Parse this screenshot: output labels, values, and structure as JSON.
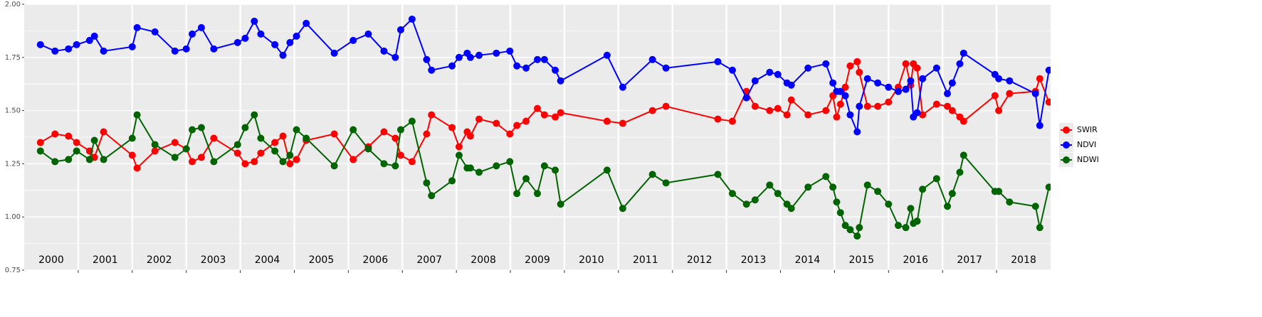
{
  "chart_data": {
    "type": "line",
    "year_labels": [
      "2000",
      "2001",
      "2002",
      "2003",
      "2004",
      "2005",
      "2006",
      "2007",
      "2008",
      "2009",
      "2010",
      "2011",
      "2012",
      "2013",
      "2014",
      "2015",
      "2016",
      "2017",
      "2018"
    ],
    "x": [
      2000.3,
      2000.57,
      2000.82,
      2000.97,
      2001.21,
      2001.3,
      2001.47,
      2002.0,
      2002.09,
      2002.42,
      2002.79,
      2003.0,
      2003.11,
      2003.28,
      2003.51,
      2003.95,
      2004.09,
      2004.26,
      2004.38,
      2004.64,
      2004.79,
      2004.92,
      2005.04,
      2005.22,
      2005.74,
      2006.09,
      2006.37,
      2006.66,
      2006.87,
      2006.97,
      2007.18,
      2007.45,
      2007.54,
      2007.92,
      2008.05,
      2008.2,
      2008.26,
      2008.42,
      2008.74,
      2008.99,
      2009.12,
      2009.29,
      2009.5,
      2009.63,
      2009.83,
      2009.93,
      2010.79,
      2011.08,
      2011.63,
      2011.88,
      2012.84,
      2013.11,
      2013.37,
      2013.53,
      2013.8,
      2013.95,
      2014.12,
      2014.2,
      2014.51,
      2014.84,
      2014.97,
      2015.04,
      2015.11,
      2015.2,
      2015.29,
      2015.42,
      2015.46,
      2015.61,
      2015.8,
      2016.0,
      2016.18,
      2016.32,
      2016.41,
      2016.46,
      2016.53,
      2016.63,
      2016.89,
      2017.09,
      2017.18,
      2017.32,
      2017.39,
      2017.97,
      2018.04,
      2018.24,
      2018.72,
      2018.8,
      2018.97
    ],
    "series": [
      {
        "name": "SWIR",
        "color": "#ff0000",
        "values": [
          1.35,
          1.39,
          1.38,
          1.35,
          1.31,
          1.28,
          1.4,
          1.29,
          1.23,
          1.31,
          1.35,
          1.32,
          1.26,
          1.28,
          1.37,
          1.3,
          1.25,
          1.26,
          1.3,
          1.35,
          1.38,
          1.25,
          1.27,
          1.36,
          1.39,
          1.27,
          1.33,
          1.4,
          1.37,
          1.29,
          1.26,
          1.39,
          1.48,
          1.42,
          1.33,
          1.4,
          1.38,
          1.46,
          1.44,
          1.39,
          1.43,
          1.45,
          1.51,
          1.48,
          1.47,
          1.49,
          1.45,
          1.44,
          1.5,
          1.52,
          1.46,
          1.45,
          1.59,
          1.52,
          1.5,
          1.51,
          1.48,
          1.55,
          1.48,
          1.5,
          1.57,
          1.47,
          1.53,
          1.61,
          1.71,
          1.73,
          1.68,
          1.52,
          1.52,
          1.54,
          1.61,
          1.72,
          1.62,
          1.72,
          1.7,
          1.48,
          1.53,
          1.52,
          1.5,
          1.47,
          1.45,
          1.57,
          1.5,
          1.58,
          1.59,
          1.65,
          1.54
        ]
      },
      {
        "name": "NDVI",
        "color": "#0000ff",
        "values": [
          1.81,
          1.78,
          1.79,
          1.81,
          1.83,
          1.85,
          1.78,
          1.8,
          1.89,
          1.87,
          1.78,
          1.79,
          1.86,
          1.89,
          1.79,
          1.82,
          1.84,
          1.92,
          1.86,
          1.81,
          1.76,
          1.82,
          1.85,
          1.91,
          1.77,
          1.83,
          1.86,
          1.78,
          1.75,
          1.88,
          1.93,
          1.74,
          1.69,
          1.71,
          1.75,
          1.77,
          1.75,
          1.76,
          1.77,
          1.78,
          1.71,
          1.7,
          1.74,
          1.74,
          1.69,
          1.64,
          1.76,
          1.61,
          1.74,
          1.7,
          1.73,
          1.69,
          1.56,
          1.64,
          1.68,
          1.67,
          1.63,
          1.62,
          1.7,
          1.72,
          1.63,
          1.59,
          1.59,
          1.57,
          1.48,
          1.4,
          1.52,
          1.65,
          1.63,
          1.61,
          1.59,
          1.6,
          1.64,
          1.47,
          1.49,
          1.65,
          1.7,
          1.58,
          1.63,
          1.72,
          1.77,
          1.67,
          1.65,
          1.64,
          1.58,
          1.43,
          1.69
        ]
      },
      {
        "name": "NDWI",
        "color": "#006400",
        "values": [
          1.31,
          1.26,
          1.27,
          1.31,
          1.27,
          1.36,
          1.27,
          1.37,
          1.48,
          1.34,
          1.28,
          1.32,
          1.41,
          1.42,
          1.26,
          1.34,
          1.42,
          1.48,
          1.37,
          1.31,
          1.26,
          1.29,
          1.41,
          1.37,
          1.24,
          1.41,
          1.32,
          1.25,
          1.24,
          1.41,
          1.45,
          1.16,
          1.1,
          1.17,
          1.29,
          1.23,
          1.23,
          1.21,
          1.24,
          1.26,
          1.11,
          1.18,
          1.11,
          1.24,
          1.22,
          1.06,
          1.22,
          1.04,
          1.2,
          1.16,
          1.2,
          1.11,
          1.06,
          1.08,
          1.15,
          1.11,
          1.06,
          1.04,
          1.14,
          1.19,
          1.14,
          1.07,
          1.02,
          0.96,
          0.94,
          0.91,
          0.95,
          1.15,
          1.12,
          1.06,
          0.96,
          0.95,
          1.04,
          0.97,
          0.98,
          1.13,
          1.18,
          1.05,
          1.11,
          1.21,
          1.29,
          1.12,
          1.12,
          1.07,
          1.05,
          0.95,
          1.14
        ]
      }
    ],
    "xlim": [
      2000,
      2019
    ],
    "xticks": [
      2001,
      2002,
      2003,
      2004,
      2005,
      2006,
      2007,
      2008,
      2009,
      2010,
      2011,
      2012,
      2013,
      2014,
      2015,
      2016,
      2017,
      2018
    ],
    "ylim": [
      0.75,
      2.0
    ],
    "yticks": [
      {
        "value": 0.75,
        "label": "0.75"
      },
      {
        "value": 1.0,
        "label": "1.00"
      },
      {
        "value": 1.25,
        "label": "1.25"
      },
      {
        "value": 1.5,
        "label": "1.50"
      },
      {
        "value": 1.75,
        "label": "1.75"
      },
      {
        "value": 2.0,
        "label": "2.00"
      }
    ],
    "grid": true,
    "legend": "right"
  }
}
